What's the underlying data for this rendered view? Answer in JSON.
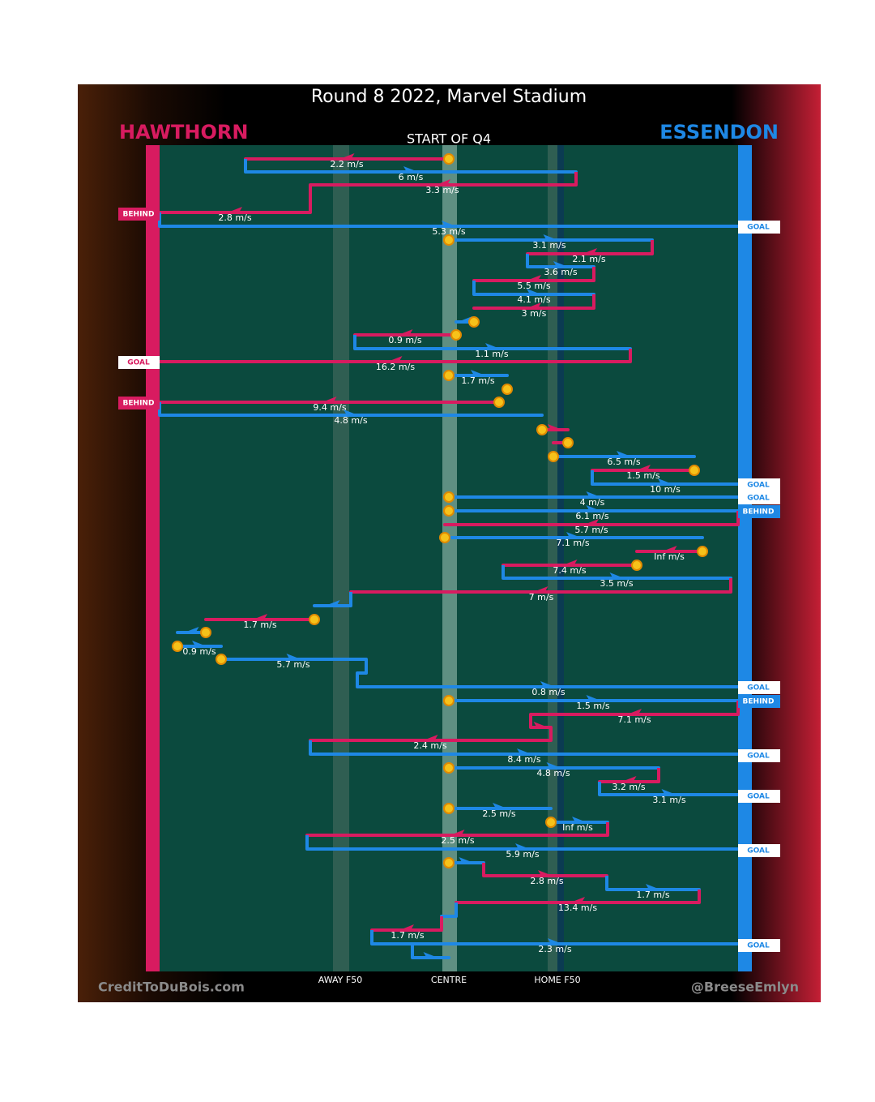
{
  "title": "Round 8 2022, Marvel Stadium",
  "teams": {
    "home": "HAWTHORN",
    "away": "ESSENDON"
  },
  "subtitle": "START OF Q4",
  "field_labels": [
    "AWAY F50",
    "CENTRE",
    "HOME F50"
  ],
  "credits": [
    "CreditToDuBois.com",
    "@BreeseEmlyn"
  ],
  "chains": [
    "2.2 m/s",
    "6 m/s",
    "3.3 m/s",
    "2.8 m/s",
    "5.3 m/s",
    "3.1 m/s",
    "2.1 m/s",
    "3.6 m/s",
    "5.5 m/s",
    "4.1 m/s",
    "3 m/s",
    "0.9 m/s",
    "1.1 m/s",
    "16.2 m/s",
    "1.7 m/s",
    "9.4 m/s",
    "4.8 m/s",
    "6.5 m/s",
    "1.5 m/s",
    "10 m/s",
    "4 m/s",
    "6.1 m/s",
    "5.7 m/s",
    "7.1 m/s",
    "Inf m/s",
    "7.4 m/s",
    "3.5 m/s",
    "7 m/s",
    "1.7 m/s",
    "0.9 m/s",
    "5.7 m/s",
    "0.8 m/s",
    "1.5 m/s",
    "7.1 m/s",
    "2.4 m/s",
    "8.4 m/s",
    "4.8 m/s",
    "3.2 m/s",
    "3.1 m/s",
    "2.5 m/s",
    "Inf m/s",
    "2.5 m/s",
    "5.9 m/s",
    "2.8 m/s",
    "1.7 m/s",
    "13.4 m/s",
    "1.7 m/s",
    "2.3 m/s"
  ],
  "outcomes_left": [
    "BEHIND",
    "GOAL",
    "BEHIND"
  ],
  "outcomes_right": [
    "GOAL",
    "GOAL",
    "GOAL",
    "BEHIND",
    "GOAL",
    "BEHIND",
    "GOAL",
    "GOAL",
    "GOAL",
    "GOAL"
  ]
}
